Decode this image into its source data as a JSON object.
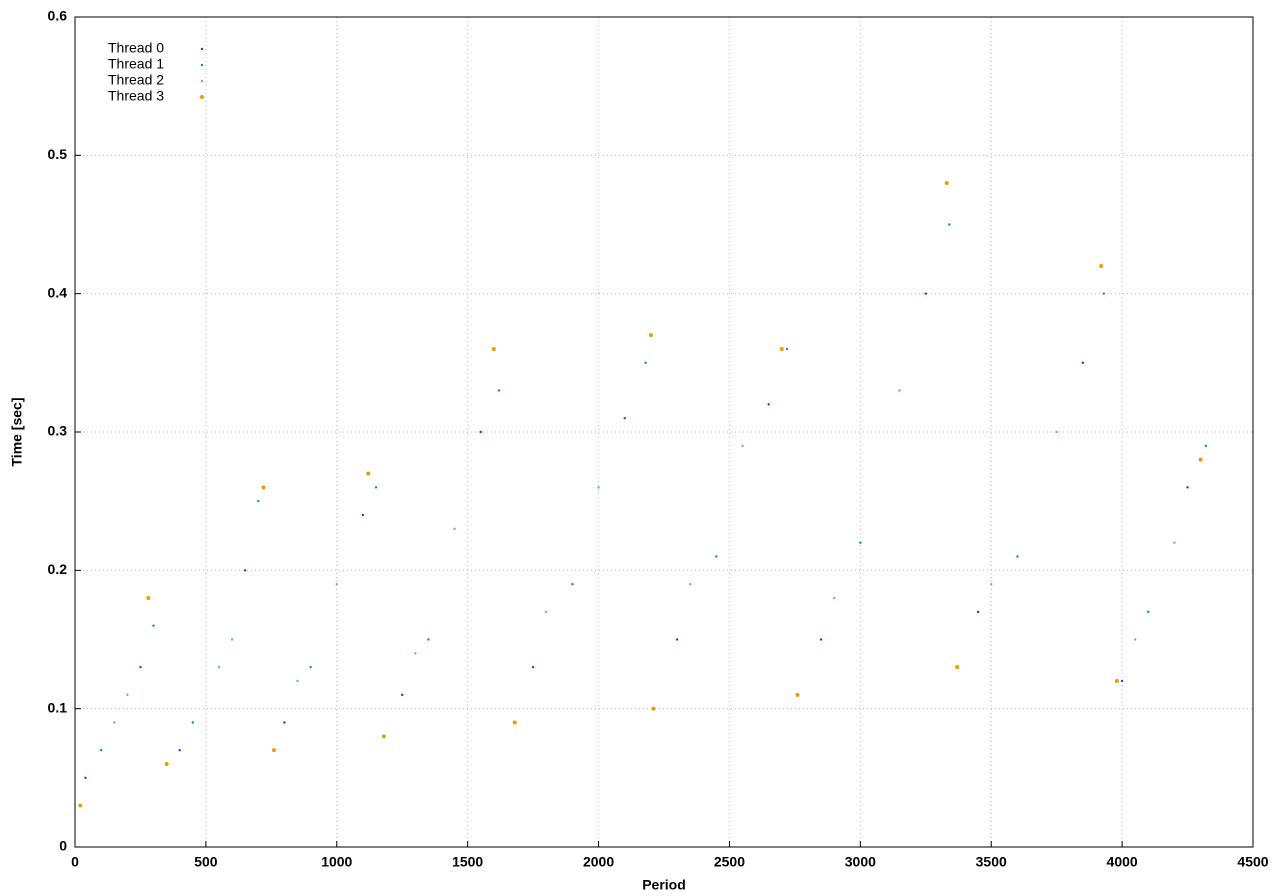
{
  "chart_data": {
    "type": "scatter",
    "x_label": "Period",
    "y_label": "Time [sec]",
    "xlim": [
      0,
      4500
    ],
    "ylim": [
      0,
      0.6
    ],
    "xticks": [
      0,
      500,
      1000,
      1500,
      2000,
      2500,
      3000,
      3500,
      4000,
      4500
    ],
    "yticks": [
      0,
      0.1,
      0.2,
      0.3,
      0.4,
      0.5,
      0.6
    ],
    "grid": true,
    "legend": "upper-left",
    "series": [
      {
        "name": "Thread 0",
        "color": "#9400d3",
        "x": [
          40,
          250,
          400,
          650,
          800,
          1100,
          1250,
          1550,
          1750,
          2100,
          2300,
          2650,
          2850,
          3250,
          3450,
          3850,
          4000,
          4250
        ],
        "values": [
          0.05,
          0.13,
          0.07,
          0.2,
          0.09,
          0.24,
          0.11,
          0.3,
          0.13,
          0.31,
          0.15,
          0.32,
          0.15,
          0.4,
          0.17,
          0.35,
          0.12,
          0.26
        ]
      },
      {
        "name": "Thread 1",
        "color": "#009e73",
        "x": [
          100,
          300,
          450,
          700,
          900,
          1150,
          1350,
          1620,
          1900,
          2180,
          2450,
          2720,
          3000,
          3340,
          3600,
          3930,
          4100,
          4320
        ],
        "values": [
          0.07,
          0.16,
          0.09,
          0.25,
          0.13,
          0.26,
          0.15,
          0.33,
          0.19,
          0.35,
          0.21,
          0.36,
          0.22,
          0.45,
          0.21,
          0.4,
          0.17,
          0.29
        ]
      },
      {
        "name": "Thread 2",
        "color": "#56b4e9",
        "x": [
          150,
          200,
          550,
          600,
          1000,
          850,
          1450,
          1300,
          2000,
          1800,
          2550,
          2350,
          3150,
          2900,
          3750,
          3500,
          4200,
          4050
        ],
        "values": [
          0.09,
          0.11,
          0.13,
          0.15,
          0.19,
          0.12,
          0.23,
          0.14,
          0.26,
          0.17,
          0.29,
          0.19,
          0.33,
          0.18,
          0.3,
          0.19,
          0.22,
          0.15
        ]
      },
      {
        "name": "Thread 3",
        "color": "#e69f00",
        "x": [
          20,
          280,
          350,
          720,
          760,
          1120,
          1180,
          1600,
          1680,
          2200,
          2210,
          2700,
          2760,
          3330,
          3370,
          3920,
          3980,
          4300
        ],
        "values": [
          0.03,
          0.18,
          0.06,
          0.26,
          0.07,
          0.27,
          0.08,
          0.36,
          0.09,
          0.37,
          0.1,
          0.36,
          0.11,
          0.48,
          0.13,
          0.42,
          0.12,
          0.28
        ]
      }
    ]
  }
}
